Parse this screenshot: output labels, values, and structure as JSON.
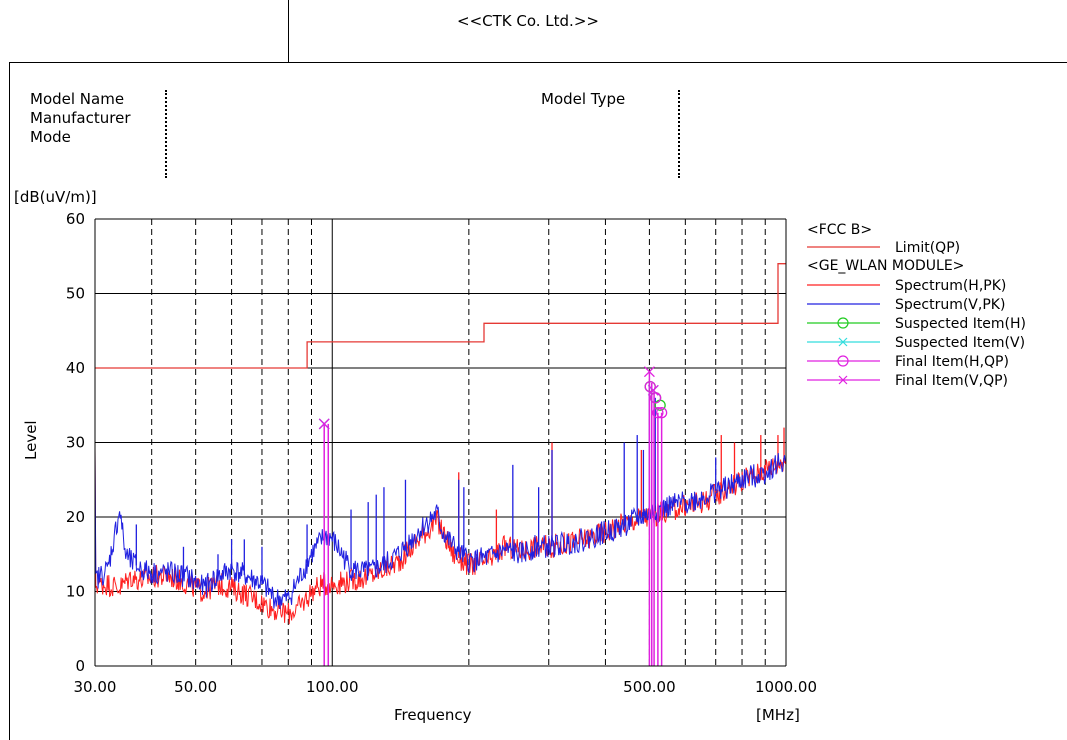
{
  "header": {
    "company": "<<CTK Co. Ltd.>>"
  },
  "info": {
    "model_name_label": "Model Name",
    "manufacturer_label": "Manufacturer",
    "mode_label": "Mode",
    "model_type_label": "Model Type",
    "colon": ":"
  },
  "chart_data": {
    "type": "line",
    "title": "",
    "xlabel": "Frequency",
    "ylabel": "Level",
    "x_unit": "[MHz]",
    "y_unit": "[dB(uV/m)]",
    "x_scale": "log",
    "xlim": [
      30,
      1000
    ],
    "ylim": [
      0,
      60
    ],
    "x_tick_labels": [
      {
        "value": 30,
        "label": "30.00"
      },
      {
        "value": 50,
        "label": "50.00"
      },
      {
        "value": 100,
        "label": "100.00"
      },
      {
        "value": 500,
        "label": "500.00"
      },
      {
        "value": 1000,
        "label": "1000.00"
      }
    ],
    "y_ticks": [
      0,
      10,
      20,
      30,
      40,
      50,
      60
    ],
    "grid": true,
    "legend_position": "right",
    "legend_groups": [
      "<FCC B>",
      "<GE_WLAN MODULE>"
    ],
    "colors": {
      "limit": "#e53935",
      "spectrum_h": "#ff2020",
      "spectrum_v": "#2020e0",
      "suspected_h": "#22cc22",
      "suspected_v": "#33dddd",
      "final_h": "#e020e0",
      "final_v": "#e020e0"
    },
    "series": [
      {
        "name": "Limit(QP)",
        "kind": "step",
        "points": [
          [
            30,
            40
          ],
          [
            88,
            40
          ],
          [
            88,
            43.5
          ],
          [
            216,
            43.5
          ],
          [
            216,
            46
          ],
          [
            960,
            46
          ],
          [
            960,
            54
          ],
          [
            1000,
            54
          ]
        ]
      },
      {
        "name": "Spectrum(H,PK)",
        "kind": "spectrum",
        "points": [
          [
            30,
            11
          ],
          [
            32,
            11
          ],
          [
            34,
            10.5
          ],
          [
            36,
            12
          ],
          [
            38,
            11.5
          ],
          [
            40,
            12
          ],
          [
            44,
            12
          ],
          [
            48,
            11
          ],
          [
            52,
            10
          ],
          [
            56,
            11
          ],
          [
            60,
            10.5
          ],
          [
            65,
            9.5
          ],
          [
            70,
            8.5
          ],
          [
            75,
            7.5
          ],
          [
            80,
            7
          ],
          [
            85,
            8
          ],
          [
            90,
            10
          ],
          [
            95,
            11
          ],
          [
            100,
            11
          ],
          [
            110,
            11.5
          ],
          [
            120,
            12
          ],
          [
            130,
            13
          ],
          [
            140,
            14
          ],
          [
            150,
            16
          ],
          [
            160,
            18
          ],
          [
            170,
            19.5
          ],
          [
            175,
            18
          ],
          [
            185,
            15
          ],
          [
            200,
            13.5
          ],
          [
            220,
            14
          ],
          [
            240,
            16
          ],
          [
            260,
            15.5
          ],
          [
            280,
            16
          ],
          [
            300,
            16
          ],
          [
            330,
            16.5
          ],
          [
            360,
            17
          ],
          [
            400,
            18
          ],
          [
            430,
            19
          ],
          [
            460,
            19.5
          ],
          [
            480,
            20
          ],
          [
            500,
            20
          ],
          [
            530,
            20.5
          ],
          [
            560,
            21
          ],
          [
            600,
            21.5
          ],
          [
            650,
            22
          ],
          [
            700,
            23
          ],
          [
            750,
            24
          ],
          [
            800,
            25
          ],
          [
            850,
            25.5
          ],
          [
            900,
            26.5
          ],
          [
            950,
            27
          ],
          [
            1000,
            28
          ]
        ],
        "spikes": [
          [
            190,
            26
          ],
          [
            230,
            21
          ],
          [
            305,
            30
          ],
          [
            480,
            29
          ],
          [
            720,
            31
          ],
          [
            770,
            30
          ],
          [
            880,
            31
          ],
          [
            960,
            31
          ],
          [
            990,
            32
          ]
        ]
      },
      {
        "name": "Spectrum(V,PK)",
        "kind": "spectrum",
        "points": [
          [
            30,
            11.5
          ],
          [
            32,
            13
          ],
          [
            33,
            17
          ],
          [
            34,
            21
          ],
          [
            35,
            15
          ],
          [
            36,
            14
          ],
          [
            38,
            13
          ],
          [
            40,
            12.5
          ],
          [
            44,
            12.5
          ],
          [
            48,
            12
          ],
          [
            52,
            10.5
          ],
          [
            56,
            12
          ],
          [
            60,
            13
          ],
          [
            65,
            12
          ],
          [
            70,
            11
          ],
          [
            75,
            9
          ],
          [
            80,
            9
          ],
          [
            85,
            12
          ],
          [
            90,
            15
          ],
          [
            95,
            17
          ],
          [
            98,
            17.5
          ],
          [
            100,
            17
          ],
          [
            105,
            15
          ],
          [
            110,
            13
          ],
          [
            120,
            12.5
          ],
          [
            130,
            13.5
          ],
          [
            140,
            15
          ],
          [
            150,
            17
          ],
          [
            160,
            19
          ],
          [
            170,
            20.5
          ],
          [
            175,
            18
          ],
          [
            185,
            16
          ],
          [
            200,
            14
          ],
          [
            220,
            14.5
          ],
          [
            240,
            15.5
          ],
          [
            260,
            15
          ],
          [
            280,
            16
          ],
          [
            300,
            16
          ],
          [
            330,
            16.5
          ],
          [
            360,
            17
          ],
          [
            400,
            18
          ],
          [
            430,
            18.5
          ],
          [
            460,
            19.5
          ],
          [
            480,
            20
          ],
          [
            500,
            20.5
          ],
          [
            530,
            21
          ],
          [
            560,
            21.5
          ],
          [
            600,
            22
          ],
          [
            650,
            22.5
          ],
          [
            700,
            23.5
          ],
          [
            750,
            24
          ],
          [
            800,
            25
          ],
          [
            850,
            25.5
          ],
          [
            900,
            26
          ],
          [
            950,
            27
          ],
          [
            1000,
            27.5
          ]
        ],
        "spikes": [
          [
            34,
            21
          ],
          [
            37,
            19
          ],
          [
            47,
            16
          ],
          [
            56,
            15
          ],
          [
            60,
            17
          ],
          [
            64,
            17
          ],
          [
            70,
            16
          ],
          [
            88,
            19
          ],
          [
            110,
            21
          ],
          [
            120,
            22
          ],
          [
            125,
            23
          ],
          [
            130,
            24
          ],
          [
            145,
            25
          ],
          [
            190,
            25
          ],
          [
            195,
            24
          ],
          [
            250,
            27
          ],
          [
            285,
            24
          ],
          [
            305,
            29
          ],
          [
            440,
            30
          ],
          [
            470,
            31
          ],
          [
            485,
            29
          ],
          [
            500,
            38
          ],
          [
            515,
            36
          ],
          [
            700,
            28
          ]
        ]
      },
      {
        "name": "Suspected Item(H)",
        "kind": "markers",
        "marker": "circle",
        "points": [
          [
            502,
            37.5
          ],
          [
            516,
            36
          ],
          [
            528,
            35
          ]
        ]
      },
      {
        "name": "Suspected Item(V)",
        "kind": "markers",
        "marker": "x",
        "points": [
          [
            96,
            32.5
          ],
          [
            510,
            37
          ]
        ]
      },
      {
        "name": "Final Item(H,QP)",
        "kind": "markers",
        "marker": "circle",
        "points": [
          [
            502,
            37.5
          ],
          [
            516,
            36
          ],
          [
            522,
            34
          ],
          [
            532,
            34
          ]
        ]
      },
      {
        "name": "Final Item(V,QP)",
        "kind": "markers",
        "marker": "x",
        "points": [
          [
            96,
            32.5
          ],
          [
            500,
            39.5
          ],
          [
            510,
            37
          ]
        ]
      }
    ],
    "vlines": [
      {
        "x": 96,
        "to": 32.5,
        "color": "#e020e0"
      },
      {
        "x": 98,
        "to": 32.5,
        "color": "#e020e0"
      },
      {
        "x": 500,
        "to": 39.5,
        "color": "#e020e0"
      },
      {
        "x": 506,
        "to": 38,
        "color": "#e020e0"
      },
      {
        "x": 512,
        "to": 37,
        "color": "#e020e0"
      },
      {
        "x": 522,
        "to": 34,
        "color": "#e020e0"
      },
      {
        "x": 532,
        "to": 34,
        "color": "#e020e0"
      }
    ]
  }
}
